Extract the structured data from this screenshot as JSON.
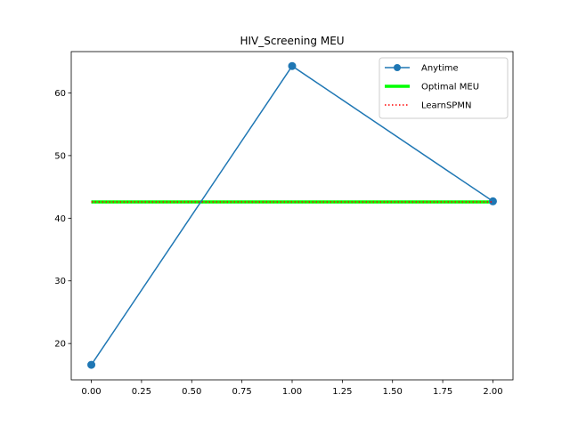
{
  "chart_data": {
    "type": "line",
    "title": "HIV_Screening MEU",
    "xlabel": "",
    "ylabel": "",
    "xlim": [
      -0.1,
      2.1
    ],
    "ylim": [
      14.2,
      66.6
    ],
    "xticks": [
      0.0,
      0.25,
      0.5,
      0.75,
      1.0,
      1.25,
      1.5,
      1.75,
      2.0
    ],
    "xtick_labels": [
      "0.00",
      "0.25",
      "0.50",
      "0.75",
      "1.00",
      "1.25",
      "1.50",
      "1.75",
      "2.00"
    ],
    "yticks": [
      20,
      30,
      40,
      50,
      60
    ],
    "ytick_labels": [
      "20",
      "30",
      "40",
      "50",
      "60"
    ],
    "grid": false,
    "legend_position": "top-right",
    "series": [
      {
        "name": "Anytime",
        "style": "line-marker",
        "color": "#1f77b4",
        "x": [
          0,
          1,
          2
        ],
        "y": [
          16.6,
          64.3,
          42.7
        ]
      },
      {
        "name": "Optimal MEU",
        "style": "thick-line",
        "color": "#00ff00",
        "x": [
          0,
          2
        ],
        "y": [
          42.6,
          42.6
        ]
      },
      {
        "name": "LearnSPMN",
        "style": "dotted-line",
        "color": "#ff0000",
        "x": [
          0,
          2
        ],
        "y": [
          42.6,
          42.6
        ]
      }
    ]
  }
}
